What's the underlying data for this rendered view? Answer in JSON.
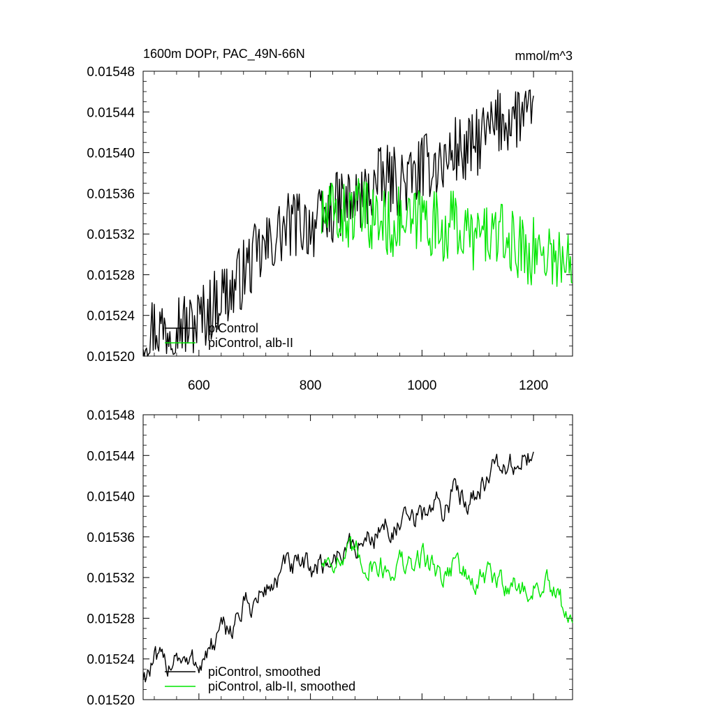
{
  "header": {
    "left_title": "1600m DOPr, PAC_49N-66N",
    "right_title": "mmol/m^3"
  },
  "colors": {
    "piControl": "#000000",
    "albII": "#00e600"
  },
  "chart_data": [
    {
      "type": "line",
      "panel": "top",
      "title": "1600m DOPr, PAC_49N-66N",
      "units": "mmol/m^3",
      "xlim": [
        500,
        1270
      ],
      "ylim": [
        0.0152,
        0.01548
      ],
      "yticks": [
        "0.01548",
        "0.01544",
        "0.01540",
        "0.01536",
        "0.01532",
        "0.01528",
        "0.01524",
        "0.01520"
      ],
      "xticks": [
        "600",
        "800",
        "1000",
        "1200"
      ],
      "legend": {
        "position": "bottom-left",
        "entries": [
          "piControl",
          "piControl, alb-II"
        ]
      },
      "series": [
        {
          "name": "piControl",
          "color": "#000000",
          "x": [
            500,
            520,
            540,
            560,
            580,
            600,
            620,
            640,
            660,
            680,
            700,
            720,
            740,
            760,
            780,
            800,
            820,
            840,
            860,
            880,
            900,
            920,
            940,
            960,
            980,
            1000,
            1020,
            1040,
            1060,
            1080,
            1100,
            1120,
            1140,
            1160,
            1180,
            1200
          ],
          "y": [
            0.015222,
            0.01523,
            0.015226,
            0.015238,
            0.015228,
            0.015236,
            0.015246,
            0.015262,
            0.015264,
            0.015282,
            0.015296,
            0.015305,
            0.015318,
            0.015327,
            0.015332,
            0.015329,
            0.015331,
            0.015344,
            0.015352,
            0.015351,
            0.015358,
            0.01537,
            0.015374,
            0.015371,
            0.015373,
            0.015383,
            0.015391,
            0.015389,
            0.015404,
            0.015398,
            0.015411,
            0.01542,
            0.015431,
            0.015434,
            0.015438,
            0.015426
          ]
        },
        {
          "name": "piControl, alb-II",
          "color": "#00e600",
          "x": [
            820,
            840,
            860,
            880,
            900,
            920,
            940,
            960,
            980,
            1000,
            1020,
            1040,
            1060,
            1080,
            1100,
            1120,
            1140,
            1160,
            1180,
            1200,
            1220,
            1240,
            1260,
            1270
          ],
          "y": [
            0.015335,
            0.015341,
            0.015336,
            0.015342,
            0.015338,
            0.015334,
            0.015329,
            0.015333,
            0.015326,
            0.01534,
            0.01533,
            0.015325,
            0.015332,
            0.015318,
            0.015316,
            0.015322,
            0.015316,
            0.015311,
            0.015306,
            0.015303,
            0.015305,
            0.015298,
            0.015289,
            0.015285
          ]
        }
      ]
    },
    {
      "type": "line",
      "panel": "bottom",
      "xlim": [
        500,
        1270
      ],
      "ylim": [
        0.0152,
        0.01548
      ],
      "yticks": [
        "0.01548",
        "0.01544",
        "0.01540",
        "0.01536",
        "0.01532",
        "0.01528",
        "0.01524",
        "0.01520"
      ],
      "legend": {
        "position": "bottom-left",
        "entries": [
          "piControl, smoothed",
          "piControl, alb-II, smoothed"
        ]
      },
      "series": [
        {
          "name": "piControl, smoothed",
          "color": "#000000",
          "x": [
            500,
            520,
            540,
            560,
            580,
            600,
            620,
            640,
            660,
            680,
            700,
            720,
            740,
            760,
            780,
            800,
            820,
            840,
            860,
            880,
            900,
            920,
            940,
            960,
            980,
            1000,
            1020,
            1040,
            1060,
            1080,
            1100,
            1120,
            1140,
            1160,
            1180,
            1200
          ],
          "y": [
            0.015224,
            0.015236,
            0.01523,
            0.01525,
            0.015232,
            0.015238,
            0.015248,
            0.015262,
            0.015274,
            0.01529,
            0.015295,
            0.015308,
            0.015318,
            0.015331,
            0.015326,
            0.01533,
            0.015333,
            0.015338,
            0.015349,
            0.015348,
            0.015356,
            0.015366,
            0.015371,
            0.015368,
            0.015374,
            0.01538,
            0.015392,
            0.015388,
            0.015405,
            0.015398,
            0.01541,
            0.015421,
            0.015428,
            0.015428,
            0.015438,
            0.015432
          ]
        },
        {
          "name": "piControl, alb-II, smoothed",
          "color": "#00e600",
          "x": [
            820,
            840,
            860,
            880,
            900,
            920,
            940,
            960,
            980,
            1000,
            1020,
            1040,
            1060,
            1080,
            1100,
            1120,
            1140,
            1160,
            1180,
            1200,
            1220,
            1240,
            1260,
            1270
          ],
          "y": [
            0.015336,
            0.015342,
            0.015334,
            0.015342,
            0.015336,
            0.015334,
            0.015327,
            0.015336,
            0.015325,
            0.015344,
            0.01533,
            0.015323,
            0.01534,
            0.015318,
            0.015313,
            0.015322,
            0.015313,
            0.015318,
            0.015305,
            0.01531,
            0.015315,
            0.015299,
            0.015286,
            0.015286
          ]
        }
      ]
    }
  ]
}
